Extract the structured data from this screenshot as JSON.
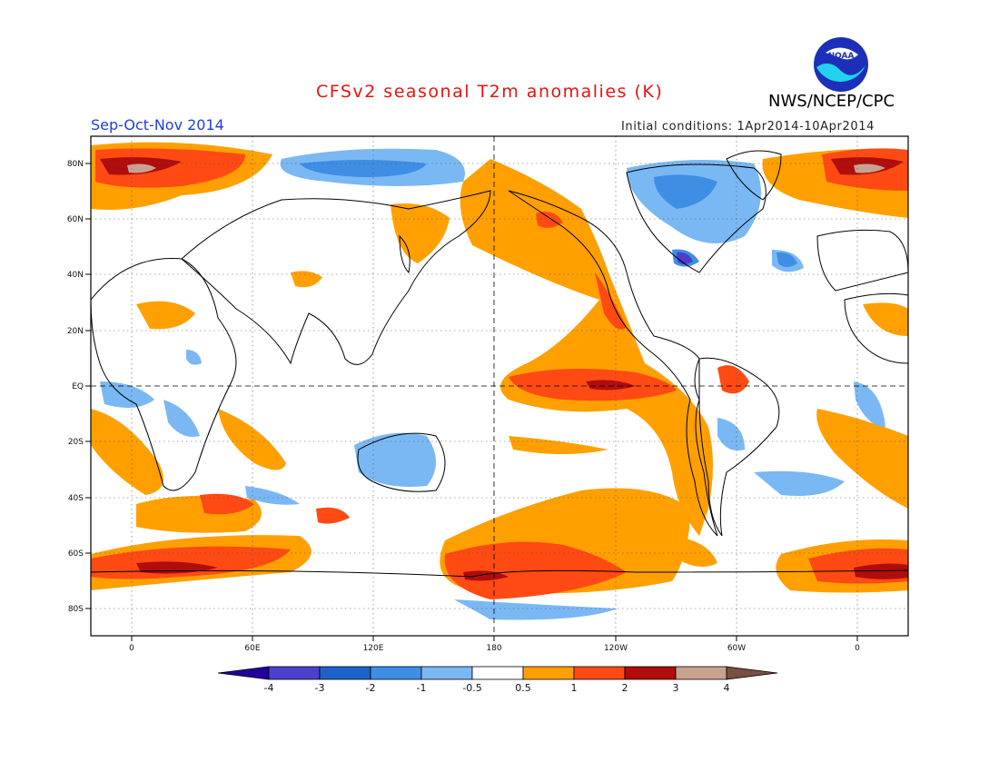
{
  "title": "CFSv2 seasonal T2m anomalies (K)",
  "organization": "NWS/NCEP/CPC",
  "logo_text": "NOAA",
  "season": "Sep-Oct-Nov 2014",
  "initial_conditions": "Initial conditions: 1Apr2014-10Apr2014",
  "lat_labels": [
    "80N",
    "60N",
    "40N",
    "20N",
    "EQ",
    "20S",
    "40S",
    "60S",
    "80S"
  ],
  "lon_labels": [
    "0",
    "60E",
    "120E",
    "180",
    "120W",
    "60W",
    "0"
  ],
  "colorbar": {
    "labels": [
      "-4",
      "-3",
      "-2",
      "-1",
      "-0.5",
      "0.5",
      "1",
      "2",
      "3",
      "4"
    ],
    "colors": [
      "#220099",
      "#4a40cc",
      "#1d62c8",
      "#3e8ee6",
      "#7ab8f4",
      "#ffffff",
      "#ffa000",
      "#ff4a14",
      "#b00d0d",
      "#c8a290",
      "#7a4e40"
    ]
  }
}
